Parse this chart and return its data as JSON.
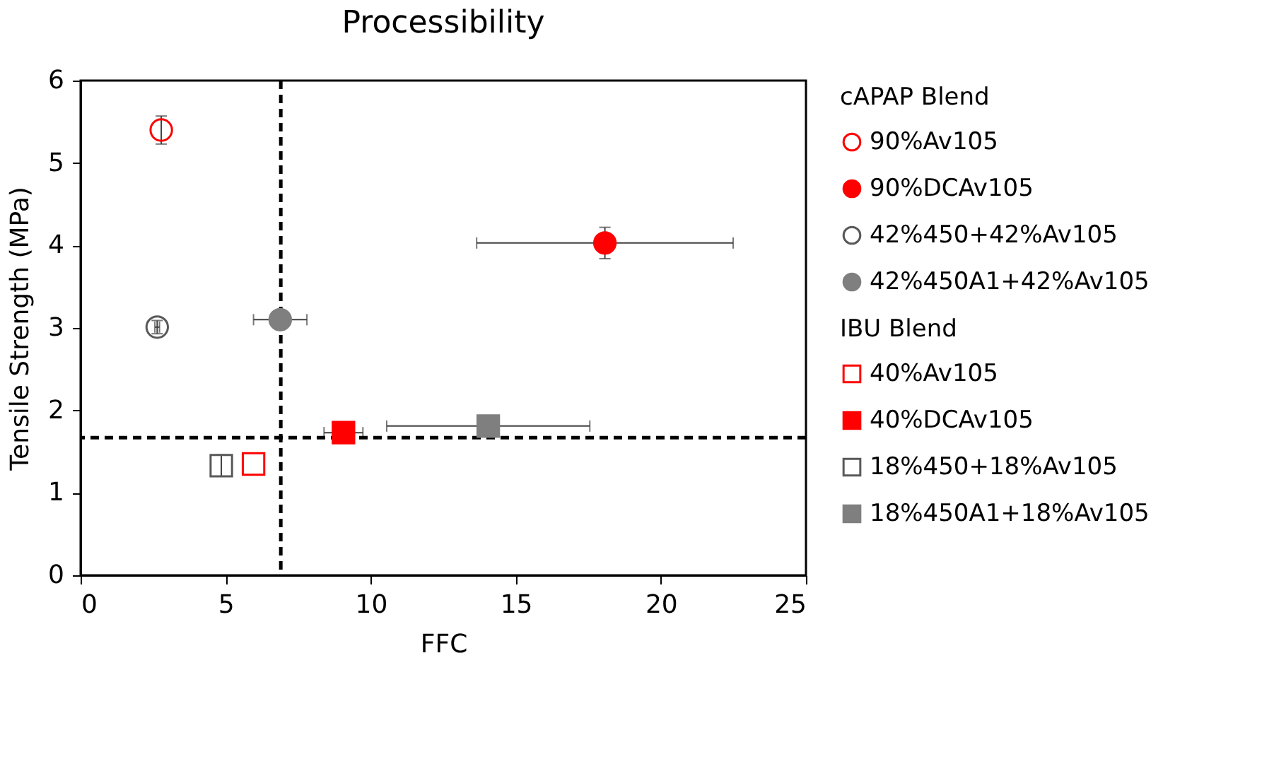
{
  "chart_data": {
    "type": "scatter",
    "title": "Processibility",
    "xlabel": "FFC",
    "ylabel": "Tensile Strength (MPa)",
    "legend_title": [
      "cAPAP Blend",
      "IBU Blend"
    ],
    "legend": "right",
    "xlim": [
      0,
      25
    ],
    "xticks": [
      0,
      5,
      10,
      15,
      20,
      25
    ],
    "ylim": [
      0,
      6
    ],
    "yticks": [
      0,
      1,
      2,
      3,
      4,
      5,
      6
    ],
    "grid": false,
    "series": [
      {
        "name": "90%Av105",
        "color": "#ff0000",
        "marker": "circle-open",
        "x": [
          2.78
        ],
        "values": [
          5.4
        ],
        "errors": [
          0.17
        ]
      },
      {
        "name": "90%DCAv105",
        "color": "#ff0000",
        "marker": "circle",
        "x": [
          18.07
        ],
        "values": [
          4.03
        ],
        "errors": [
          0.19
        ],
        "xerrors": [
          4.42
        ]
      },
      {
        "name": "42%450+42%Av105",
        "color": "#595959",
        "marker": "circle-open",
        "x": [
          2.64
        ],
        "values": [
          3.01
        ],
        "errors": [
          0.08
        ],
        "xerrors": [
          0.08
        ]
      },
      {
        "name": "42%450A1+42%Av105",
        "color": "#7f7f7f",
        "marker": "circle",
        "x": [
          6.88
        ],
        "values": [
          3.1
        ],
        "errors": [
          0.1
        ],
        "xerrors": [
          0.92
        ]
      },
      {
        "name": "40%Av105",
        "color": "#ff0000",
        "marker": "square-open",
        "x": [
          5.96
        ],
        "values": [
          1.35
        ]
      },
      {
        "name": "40%DCAv105",
        "color": "#ff0000",
        "marker": "square",
        "x": [
          9.06
        ],
        "values": [
          1.73
        ],
        "xerrors": [
          0.67
        ]
      },
      {
        "name": "18%450+18%Av105",
        "color": "#595959",
        "marker": "square-open",
        "x": [
          4.85
        ],
        "values": [
          1.33
        ],
        "errors": [
          0.13
        ]
      },
      {
        "name": "18%450A1+18%Av105",
        "color": "#7f7f7f",
        "marker": "square",
        "x": [
          14.05
        ],
        "values": [
          1.81
        ],
        "xerrors": [
          3.5
        ]
      }
    ],
    "ref_lines": [
      {
        "axis": "x",
        "value": 6.9,
        "color": "#000000",
        "line_style": "dashed"
      },
      {
        "axis": "y",
        "value": 1.67,
        "color": "#000000",
        "line_style": "dashed"
      }
    ]
  }
}
